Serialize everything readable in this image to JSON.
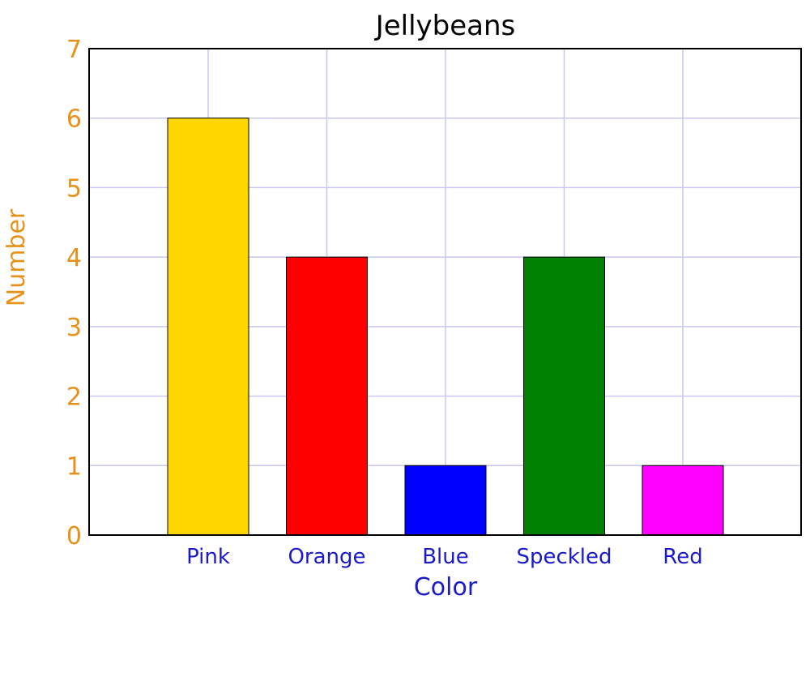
{
  "chart_data": {
    "type": "bar",
    "title": "Jellybeans",
    "xlabel": "Color",
    "ylabel": "Number",
    "categories": [
      "Pink",
      "Orange",
      "Blue",
      "Speckled",
      "Red"
    ],
    "values": [
      6,
      4,
      1,
      4,
      1
    ],
    "bar_colors": [
      "#FFD700",
      "#FF0000",
      "#0000FF",
      "#008000",
      "#FF00FF"
    ],
    "ylim": [
      0,
      7
    ],
    "yticks": [
      "0",
      "1",
      "2",
      "3",
      "4",
      "5",
      "6",
      "7"
    ],
    "grid": true,
    "colors": {
      "grid": "#c8c8f0",
      "y_axis_text": "#E8911A",
      "x_axis_text": "#1A1AC8",
      "title_text": "#000000"
    }
  }
}
